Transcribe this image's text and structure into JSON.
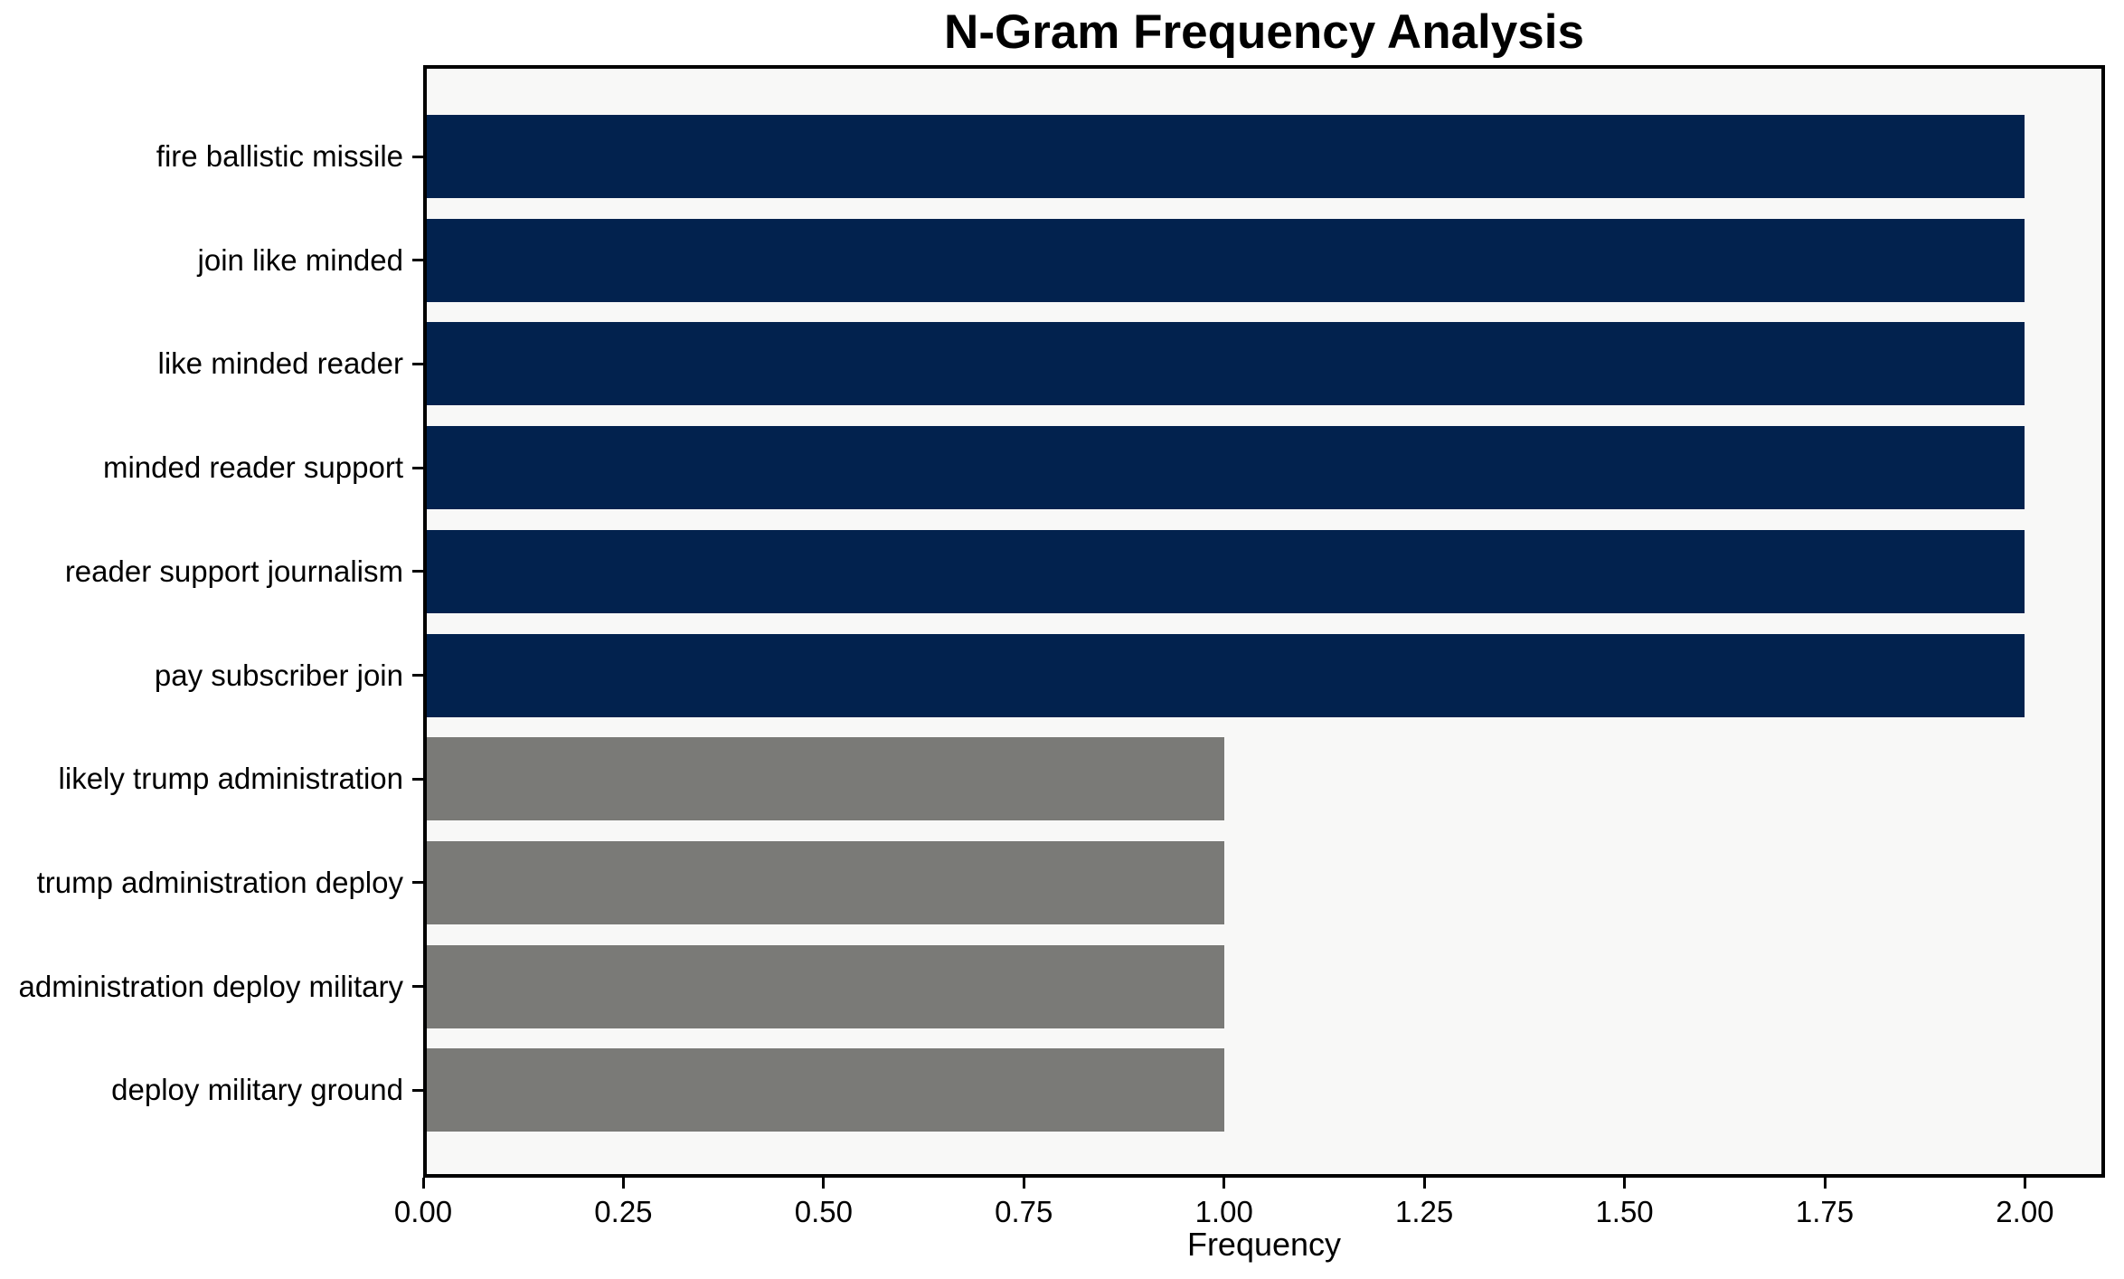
{
  "chart_data": {
    "type": "bar",
    "orientation": "horizontal",
    "title": "N-Gram Frequency Analysis",
    "xlabel": "Frequency",
    "ylabel": "",
    "categories": [
      "fire ballistic missile",
      "join like minded",
      "like minded reader",
      "minded reader support",
      "reader support journalism",
      "pay subscriber join",
      "likely trump administration",
      "trump administration deploy",
      "administration deploy military",
      "deploy military ground"
    ],
    "values": [
      2,
      2,
      2,
      2,
      2,
      2,
      1,
      1,
      1,
      1
    ],
    "bar_colors": [
      "#02224e",
      "#02224e",
      "#02224e",
      "#02224e",
      "#02224e",
      "#02224e",
      "#7a7a77",
      "#7a7a77",
      "#7a7a77",
      "#7a7a77"
    ],
    "xlim": [
      0,
      2.1
    ],
    "x_ticks": [
      {
        "v": 0,
        "label": "0.00"
      },
      {
        "v": 0.25,
        "label": "0.25"
      },
      {
        "v": 0.5,
        "label": "0.50"
      },
      {
        "v": 0.75,
        "label": "0.75"
      },
      {
        "v": 1,
        "label": "1.00"
      },
      {
        "v": 1.25,
        "label": "1.25"
      },
      {
        "v": 1.5,
        "label": "1.50"
      },
      {
        "v": 1.75,
        "label": "1.75"
      },
      {
        "v": 2,
        "label": "2.00"
      }
    ],
    "grid": false,
    "legend": false,
    "figure_background": "#ffffff",
    "plot_background": "#f8f8f7",
    "axis_color": "#000000",
    "highlight_color": "#02224e",
    "muted_color": "#7a7a77"
  }
}
